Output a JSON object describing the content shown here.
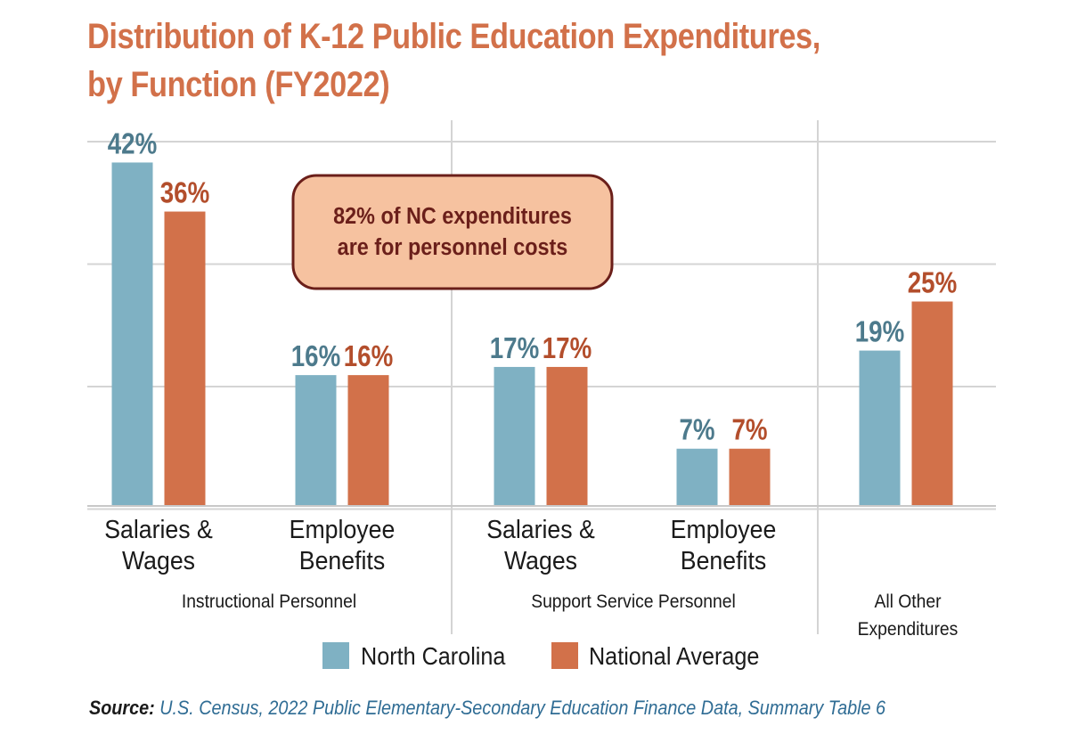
{
  "title_lines": [
    "Distribution of K-12 Public Education Expenditures,",
    "by Function (FY2022)"
  ],
  "colors": {
    "north_carolina": "#7fb1c3",
    "national_average": "#d2714a",
    "nc_label": "#4d7a8c",
    "national_label": "#b34e2c",
    "title": "#d2714a",
    "callout_fill": "#f6c2a0",
    "callout_border": "#6b1f1a",
    "gridline": "#d4d4d4"
  },
  "callout": {
    "lines": [
      "82% of NC expenditures",
      "are for personnel costs"
    ]
  },
  "legend": {
    "nc_label": "North Carolina",
    "national_label": "National Average"
  },
  "source": {
    "label": "Source:",
    "text": "U.S. Census, 2022 Public Elementary-Secondary Education Finance Data, Summary Table 6"
  },
  "chart_data": {
    "type": "bar",
    "ylim": [
      0,
      45
    ],
    "grid": true,
    "legend_position": "bottom",
    "categories": [
      {
        "label_lines": [
          "Salaries &",
          "Wages"
        ],
        "group": "Instructional Personnel"
      },
      {
        "label_lines": [
          "Employee",
          "Benefits"
        ],
        "group": "Instructional Personnel"
      },
      {
        "label_lines": [
          "Salaries &",
          "Wages"
        ],
        "group": "Support Service Personnel"
      },
      {
        "label_lines": [
          "Employee",
          "Benefits"
        ],
        "group": "Support Service Personnel"
      },
      {
        "label_lines": [],
        "group": "All Other Expenditures"
      }
    ],
    "groups": [
      {
        "label_lines": [
          "Instructional Personnel"
        ]
      },
      {
        "label_lines": [
          "Support Service Personnel"
        ]
      },
      {
        "label_lines": [
          "All Other",
          "Expenditures"
        ]
      }
    ],
    "series": [
      {
        "name": "North Carolina",
        "values": [
          42,
          16,
          17,
          7,
          19
        ],
        "labels": [
          "42%",
          "16%",
          "17%",
          "7%",
          "19%"
        ]
      },
      {
        "name": "National Average",
        "values": [
          36,
          16,
          17,
          7,
          25
        ],
        "labels": [
          "36%",
          "16%",
          "17%",
          "7%",
          "25%"
        ]
      }
    ]
  }
}
